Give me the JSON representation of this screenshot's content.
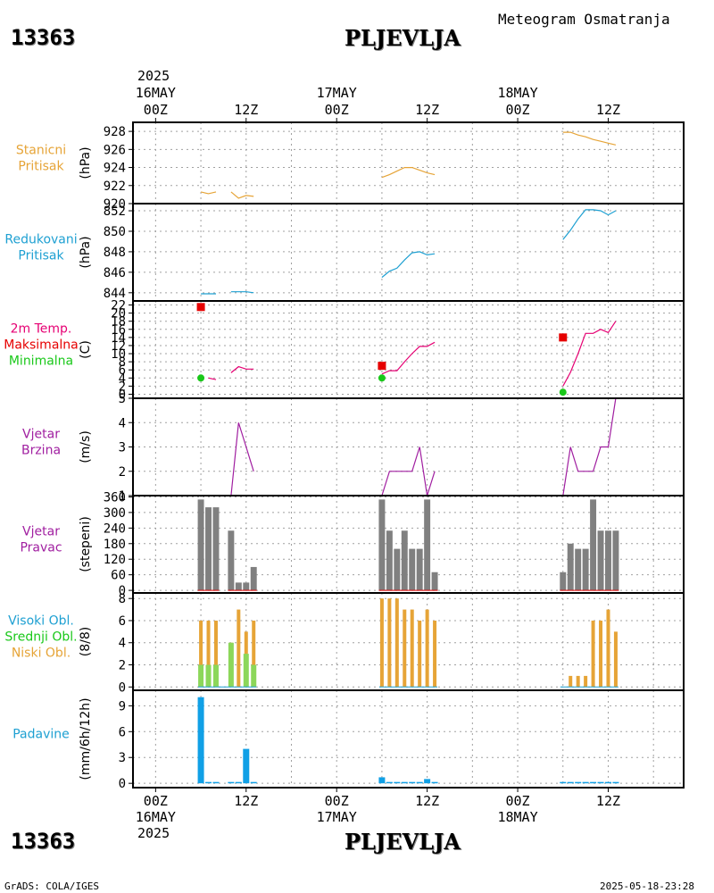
{
  "header": {
    "station_id": "13363",
    "station_name": "PLJEVLJA",
    "chart_type": "Meteogram Osmatranja",
    "year": "2025"
  },
  "footer": {
    "station_id": "13363",
    "station_name": "PLJEVLJA",
    "year": "2025",
    "credit": "GrADS: COLA/IGES",
    "timestamp": "2025-05-18-23:28"
  },
  "time_axis": {
    "ticks": [
      {
        "label": "00Z",
        "hour": 0,
        "date": "16MAY"
      },
      {
        "label": "12Z",
        "hour": 12,
        "date": ""
      },
      {
        "label": "00Z",
        "hour": 24,
        "date": "17MAY"
      },
      {
        "label": "12Z",
        "hour": 36,
        "date": ""
      },
      {
        "label": "00Z",
        "hour": 48,
        "date": "18MAY"
      },
      {
        "label": "12Z",
        "hour": 60,
        "date": ""
      }
    ],
    "xlim": [
      -3,
      70
    ]
  },
  "colors": {
    "orange": "#e6a437",
    "blue": "#1ea0d2",
    "crimson": "#e60073",
    "red": "#e60000",
    "green": "#19c819",
    "purple": "#a01ea0",
    "gray": "#808080",
    "lightgreen": "#8cd75a",
    "precip": "#10a0e6"
  },
  "chart_data": [
    {
      "id": "stanicni",
      "type": "line",
      "labels": [
        {
          "text": "Stanicni",
          "color": "#e6a437"
        },
        {
          "text": "Pritisak",
          "color": "#e6a437"
        }
      ],
      "ylabel": "(hPa)",
      "ylim": [
        920,
        929
      ],
      "yticks": [
        920,
        922,
        924,
        926,
        928
      ],
      "series": [
        {
          "name": "Stanicni Pritisak",
          "color": "#e6a437",
          "segments": [
            [
              [
                6,
                921.3
              ],
              [
                7,
                921.1
              ],
              [
                8,
                921.3
              ]
            ],
            [
              [
                10,
                921.3
              ],
              [
                11,
                920.6
              ],
              [
                12,
                920.9
              ],
              [
                13,
                920.8
              ]
            ],
            [
              [
                30,
                922.9
              ],
              [
                31,
                923.2
              ],
              [
                32,
                923.6
              ],
              [
                33,
                924.0
              ],
              [
                34,
                924.0
              ],
              [
                35,
                923.7
              ],
              [
                36,
                923.4
              ],
              [
                37,
                923.2
              ]
            ],
            [
              [
                54,
                927.9
              ],
              [
                55,
                927.9
              ],
              [
                56,
                927.6
              ],
              [
                57,
                927.4
              ],
              [
                58,
                927.1
              ],
              [
                59,
                926.9
              ],
              [
                60,
                926.7
              ],
              [
                61,
                926.5
              ]
            ]
          ]
        }
      ]
    },
    {
      "id": "redukovani",
      "type": "line",
      "labels": [
        {
          "text": "Redukovani",
          "color": "#1ea0d2"
        },
        {
          "text": "Pritisak",
          "color": "#1ea0d2"
        }
      ],
      "ylabel": "(hPa)",
      "ylim": [
        843.2,
        852.7
      ],
      "yticks": [
        844,
        846,
        848,
        850,
        852
      ],
      "series": [
        {
          "name": "Redukovani Pritisak",
          "color": "#1ea0d2",
          "segments": [
            [
              [
                6,
                843.9
              ],
              [
                7,
                843.9
              ],
              [
                8,
                843.9
              ]
            ],
            [
              [
                10,
                844.1
              ],
              [
                11,
                844.1
              ],
              [
                12,
                844.1
              ],
              [
                13,
                844.0
              ]
            ],
            [
              [
                30,
                845.5
              ],
              [
                31,
                846.1
              ],
              [
                32,
                846.4
              ],
              [
                33,
                847.2
              ],
              [
                34,
                847.9
              ],
              [
                35,
                848.0
              ],
              [
                36,
                847.7
              ],
              [
                37,
                847.8
              ]
            ],
            [
              [
                54,
                849.2
              ],
              [
                55,
                850.1
              ],
              [
                56,
                851.2
              ],
              [
                57,
                852.1
              ],
              [
                58,
                852.1
              ],
              [
                59,
                852.0
              ],
              [
                60,
                851.6
              ],
              [
                61,
                852.0
              ]
            ]
          ]
        }
      ]
    },
    {
      "id": "temperatura",
      "type": "line",
      "labels": [
        {
          "text": "2m Temp.",
          "color": "#e60073"
        },
        {
          "text": "Maksimalna",
          "color": "#e60000"
        },
        {
          "text": "Minimalna",
          "color": "#19c819"
        }
      ],
      "ylabel": "(C)",
      "ylim": [
        -1,
        23
      ],
      "yticks": [
        0,
        2,
        4,
        6,
        8,
        10,
        12,
        14,
        16,
        18,
        20,
        22
      ],
      "series": [
        {
          "name": "2m Temp.",
          "color": "#e60073",
          "segments": [
            [
              [
                7,
                4.0
              ],
              [
                8,
                3.6
              ]
            ],
            [
              [
                10,
                5.3
              ],
              [
                11,
                6.8
              ],
              [
                12,
                6.2
              ],
              [
                13,
                6.2
              ]
            ],
            [
              [
                30,
                5.0
              ],
              [
                31,
                5.8
              ],
              [
                32,
                5.8
              ],
              [
                33,
                8.0
              ],
              [
                34,
                10.0
              ],
              [
                35,
                11.8
              ],
              [
                36,
                11.8
              ],
              [
                37,
                12.8
              ]
            ],
            [
              [
                54,
                2.0
              ],
              [
                55,
                5.4
              ],
              [
                56,
                10.0
              ],
              [
                57,
                15.0
              ],
              [
                58,
                15.0
              ],
              [
                59,
                16.0
              ],
              [
                60,
                15.2
              ],
              [
                61,
                18.0
              ]
            ]
          ]
        }
      ],
      "max_points": [
        [
          6,
          21.5
        ],
        [
          30,
          7.0
        ],
        [
          54,
          14.0
        ]
      ],
      "min_points": [
        [
          6,
          4.0
        ],
        [
          30,
          4.0
        ],
        [
          54,
          0.5
        ]
      ]
    },
    {
      "id": "brzina",
      "type": "line",
      "labels": [
        {
          "text": "Vjetar",
          "color": "#a01ea0"
        },
        {
          "text": "Brzina",
          "color": "#a01ea0"
        }
      ],
      "ylabel": "(m/s)",
      "ylim": [
        1,
        5
      ],
      "yticks": [
        1,
        2,
        3,
        4,
        5
      ],
      "series": [
        {
          "name": "Vjetar Brzina",
          "color": "#a01ea0",
          "segments": [
            [
              [
                6,
                1
              ],
              [
                7,
                1
              ],
              [
                8,
                1
              ]
            ],
            [
              [
                10,
                1
              ],
              [
                11,
                4
              ],
              [
                12,
                3
              ],
              [
                13,
                2
              ]
            ],
            [
              [
                30,
                1
              ],
              [
                31,
                2
              ],
              [
                32,
                2
              ],
              [
                33,
                2
              ],
              [
                34,
                2
              ],
              [
                35,
                3
              ],
              [
                36,
                1
              ],
              [
                37,
                2
              ]
            ],
            [
              [
                54,
                1
              ],
              [
                55,
                3
              ],
              [
                56,
                2
              ],
              [
                57,
                2
              ],
              [
                58,
                2
              ],
              [
                59,
                3
              ],
              [
                60,
                3
              ],
              [
                61,
                5
              ]
            ]
          ]
        }
      ]
    },
    {
      "id": "pravac",
      "type": "bar",
      "labels": [
        {
          "text": "Vjetar",
          "color": "#a01ea0"
        },
        {
          "text": "Pravac",
          "color": "#a01ea0"
        }
      ],
      "ylabel": "(stepeni)",
      "ylim": [
        -10,
        365
      ],
      "yticks": [
        0,
        60,
        120,
        180,
        240,
        300,
        360
      ],
      "bars": [
        [
          6,
          350
        ],
        [
          7,
          320
        ],
        [
          8,
          320
        ],
        [
          10,
          230
        ],
        [
          11,
          30
        ],
        [
          12,
          30
        ],
        [
          13,
          90
        ],
        [
          30,
          350
        ],
        [
          31,
          230
        ],
        [
          32,
          160
        ],
        [
          33,
          230
        ],
        [
          34,
          160
        ],
        [
          35,
          160
        ],
        [
          36,
          350
        ],
        [
          37,
          70
        ],
        [
          54,
          70
        ],
        [
          55,
          180
        ],
        [
          56,
          160
        ],
        [
          57,
          160
        ],
        [
          58,
          350
        ],
        [
          59,
          230
        ],
        [
          60,
          230
        ],
        [
          61,
          230
        ]
      ],
      "bar_color": "#808080"
    },
    {
      "id": "oblaci",
      "type": "bar",
      "labels": [
        {
          "text": "Visoki Obl.",
          "color": "#1ea0d2"
        },
        {
          "text": "Srednji Obl.",
          "color": "#19c819"
        },
        {
          "text": "Niski Obl.",
          "color": "#e6a437"
        }
      ],
      "ylabel": "(8/8)",
      "ylim": [
        -0.3,
        8.5
      ],
      "yticks": [
        0,
        2,
        4,
        6,
        8
      ],
      "low": [
        [
          6,
          6
        ],
        [
          7,
          6
        ],
        [
          8,
          6
        ],
        [
          10,
          4
        ],
        [
          11,
          7
        ],
        [
          12,
          5
        ],
        [
          13,
          6
        ],
        [
          30,
          8
        ],
        [
          31,
          8
        ],
        [
          32,
          8
        ],
        [
          33,
          7
        ],
        [
          34,
          7
        ],
        [
          35,
          6
        ],
        [
          36,
          7
        ],
        [
          37,
          6
        ],
        [
          54,
          0
        ],
        [
          55,
          1
        ],
        [
          56,
          1
        ],
        [
          57,
          1
        ],
        [
          58,
          6
        ],
        [
          59,
          6
        ],
        [
          60,
          7
        ],
        [
          61,
          5
        ]
      ],
      "mid": [
        [
          6,
          2
        ],
        [
          7,
          2
        ],
        [
          8,
          2
        ],
        [
          10,
          4
        ],
        [
          11,
          0
        ],
        [
          12,
          3
        ],
        [
          13,
          2
        ]
      ],
      "high": []
    },
    {
      "id": "padavine",
      "type": "bar",
      "labels": [
        {
          "text": "Padavine",
          "color": "#1ea0d2"
        }
      ],
      "ylabel": "(mm/6h/12h)",
      "ylim": [
        -0.5,
        10.8
      ],
      "yticks": [
        0,
        3,
        6,
        9
      ],
      "bars": [
        [
          6,
          10
        ],
        [
          7,
          0.1
        ],
        [
          8,
          0.1
        ],
        [
          10,
          0.1
        ],
        [
          11,
          0.1
        ],
        [
          12,
          4
        ],
        [
          13,
          0.1
        ],
        [
          30,
          0.7
        ],
        [
          31,
          0.1
        ],
        [
          32,
          0.1
        ],
        [
          33,
          0.1
        ],
        [
          34,
          0.1
        ],
        [
          35,
          0.1
        ],
        [
          36,
          0.5
        ],
        [
          37,
          0.1
        ],
        [
          54,
          0.1
        ],
        [
          55,
          0.1
        ],
        [
          56,
          0.1
        ],
        [
          57,
          0.1
        ],
        [
          58,
          0.1
        ],
        [
          59,
          0.1
        ],
        [
          60,
          0.1
        ],
        [
          61,
          0.1
        ]
      ],
      "bar_color": "#10a0e6"
    }
  ]
}
